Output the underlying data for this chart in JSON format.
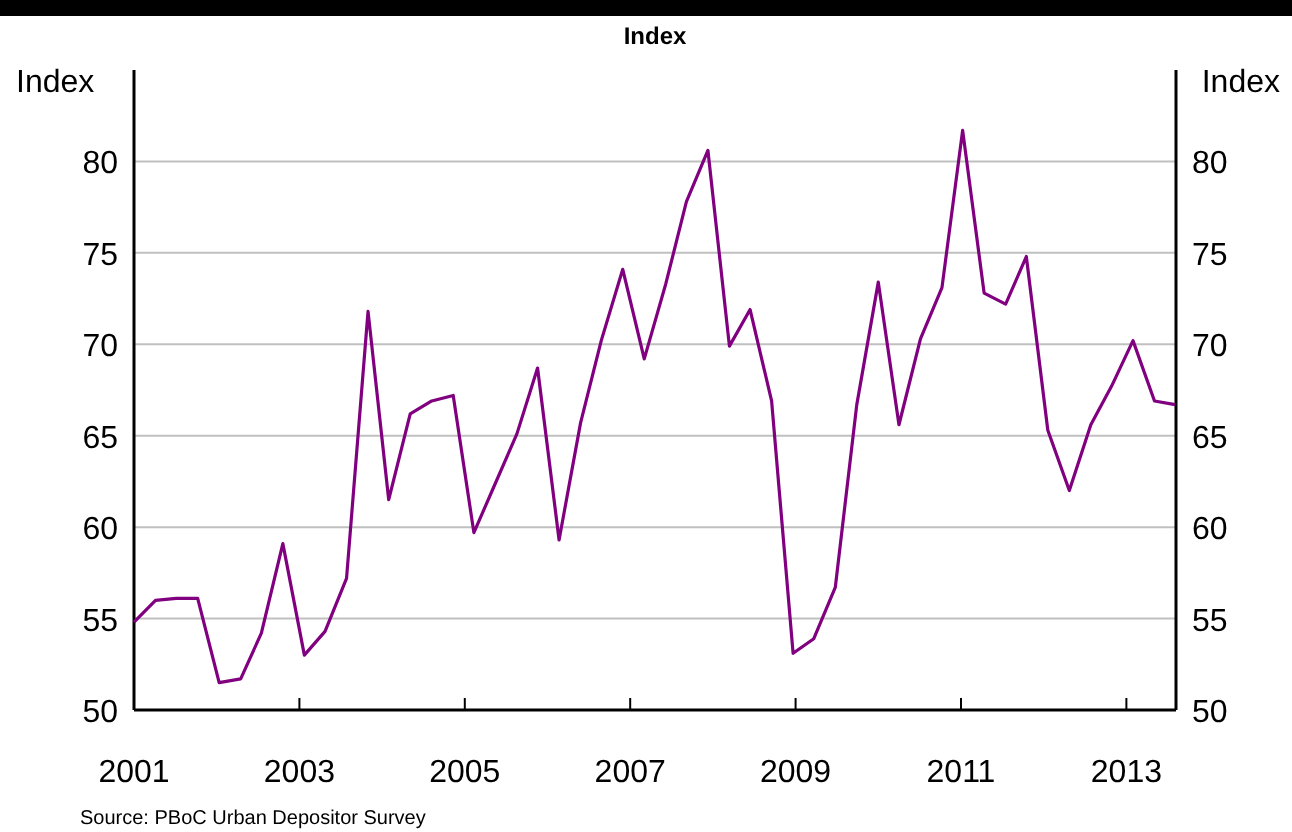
{
  "chart_data": {
    "type": "line",
    "title": "Index",
    "ylabel": "Index",
    "y2label": "Index",
    "x": [
      2001.0,
      2001.26,
      2001.51,
      2001.77,
      2002.03,
      2002.29,
      2002.54,
      2002.8,
      2003.06,
      2003.31,
      2003.57,
      2003.83,
      2004.08,
      2004.34,
      2004.6,
      2004.86,
      2005.11,
      2005.37,
      2005.63,
      2005.88,
      2006.14,
      2006.4,
      2006.65,
      2006.91,
      2007.17,
      2007.43,
      2007.68,
      2007.94,
      2008.2,
      2008.45,
      2008.71,
      2008.97,
      2009.22,
      2009.48,
      2009.74,
      2010.0,
      2010.25,
      2010.51,
      2010.77,
      2011.02,
      2011.28,
      2011.54,
      2011.79,
      2012.05,
      2012.31,
      2012.57,
      2012.82,
      2013.08,
      2013.34,
      2013.59
    ],
    "series": [
      {
        "color": "#800080",
        "values": [
          54.8,
          56.0,
          56.1,
          56.1,
          51.5,
          51.7,
          54.2,
          59.1,
          53.0,
          54.3,
          57.2,
          71.8,
          61.5,
          66.2,
          66.9,
          67.2,
          59.7,
          62.4,
          65.1,
          68.7,
          59.3,
          65.7,
          70.2,
          74.1,
          69.2,
          73.3,
          77.8,
          80.6,
          69.9,
          71.9,
          66.9,
          53.1,
          53.9,
          56.7,
          66.7,
          73.4,
          65.6,
          70.3,
          73.1,
          81.7,
          72.8,
          72.2,
          74.8,
          65.3,
          62.0,
          65.6,
          67.7,
          70.2,
          66.9,
          66.7
        ]
      }
    ],
    "xlim": [
      2001,
      2013.6
    ],
    "xticks": [
      2001,
      2003,
      2005,
      2007,
      2009,
      2011,
      2013
    ],
    "ylim": [
      50,
      85
    ],
    "yticks": [
      50,
      55,
      60,
      65,
      70,
      75,
      80
    ],
    "y2lim": [
      50,
      85
    ],
    "y2ticks": [
      50,
      55,
      60,
      65,
      70,
      75,
      80
    ],
    "grid": "y",
    "marker": "none",
    "line_style": "solid",
    "annotations": [
      "Source: PBoC Urban Depositor Survey"
    ]
  }
}
